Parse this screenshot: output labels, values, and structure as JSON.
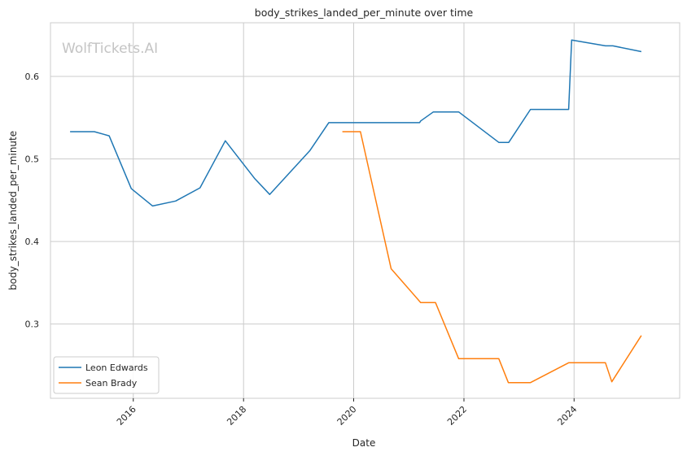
{
  "chart_data": {
    "type": "line",
    "title": "body_strikes_landed_per_minute over time",
    "xlabel": "Date",
    "ylabel": "body_strikes_landed_per_minute",
    "watermark": "WolfTickets.AI",
    "xlim": [
      "2014-07-01",
      "2025-12-01"
    ],
    "ylim": [
      0.21,
      0.665
    ],
    "x_ticks": [
      "2016",
      "2018",
      "2020",
      "2022",
      "2024"
    ],
    "y_ticks": [
      "0.3",
      "0.4",
      "0.5",
      "0.6"
    ],
    "y_tick_values": [
      0.3,
      0.4,
      0.5,
      0.6
    ],
    "grid": true,
    "legend_position": "lower-left",
    "series": [
      {
        "name": "Leon Edwards",
        "color": "#1f77b4",
        "points": [
          [
            "2014-11-08",
            0.533
          ],
          [
            "2015-04-18",
            0.533
          ],
          [
            "2015-07-25",
            0.528
          ],
          [
            "2015-12-19",
            0.464
          ],
          [
            "2016-05-08",
            0.443
          ],
          [
            "2016-10-08",
            0.449
          ],
          [
            "2017-03-18",
            0.465
          ],
          [
            "2017-09-02",
            0.522
          ],
          [
            "2018-03-17",
            0.476
          ],
          [
            "2018-06-23",
            0.457
          ],
          [
            "2019-03-16",
            0.51
          ],
          [
            "2019-07-20",
            0.544
          ],
          [
            "2021-03-13",
            0.544
          ],
          [
            "2021-03-20",
            0.546
          ],
          [
            "2021-06-12",
            0.557
          ],
          [
            "2021-11-27",
            0.557
          ],
          [
            "2022-08-20",
            0.52
          ],
          [
            "2022-10-25",
            0.52
          ],
          [
            "2023-03-18",
            0.56
          ],
          [
            "2023-11-26",
            0.56
          ],
          [
            "2023-12-16",
            0.644
          ],
          [
            "2024-07-27",
            0.637
          ],
          [
            "2024-09-14",
            0.637
          ],
          [
            "2025-03-22",
            0.63
          ]
        ]
      },
      {
        "name": "Sean Brady",
        "color": "#ff7f0e",
        "points": [
          [
            "2019-10-18",
            0.533
          ],
          [
            "2020-02-15",
            0.533
          ],
          [
            "2020-09-05",
            0.367
          ],
          [
            "2021-03-20",
            0.326
          ],
          [
            "2021-06-26",
            0.326
          ],
          [
            "2021-11-27",
            0.258
          ],
          [
            "2022-08-20",
            0.258
          ],
          [
            "2022-10-22",
            0.229
          ],
          [
            "2023-03-18",
            0.229
          ],
          [
            "2023-11-26",
            0.253
          ],
          [
            "2024-07-27",
            0.253
          ],
          [
            "2024-09-07",
            0.23
          ],
          [
            "2025-03-22",
            0.286
          ]
        ]
      }
    ]
  }
}
